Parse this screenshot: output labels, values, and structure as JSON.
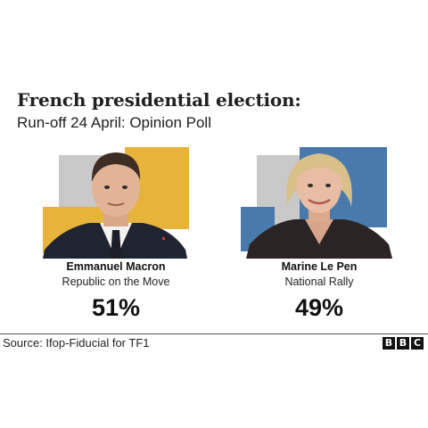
{
  "header": {
    "title": "French presidential election:",
    "subtitle": "Run-off 24 April: Opinion Poll"
  },
  "candidates": [
    {
      "name": "Emmanuel Macron",
      "party": "Republic on the Move",
      "percentage": "51%",
      "accent_color": "#e8b33a",
      "secondary_color": "#c9c9c9"
    },
    {
      "name": "Marine Le Pen",
      "party": "National Rally",
      "percentage": "49%",
      "accent_color": "#4a7aab",
      "secondary_color": "#c9c9c9"
    }
  ],
  "footer": {
    "source": "Source: Ifop-Fiducial for TF1",
    "logo_letters": [
      "B",
      "B",
      "C"
    ]
  }
}
